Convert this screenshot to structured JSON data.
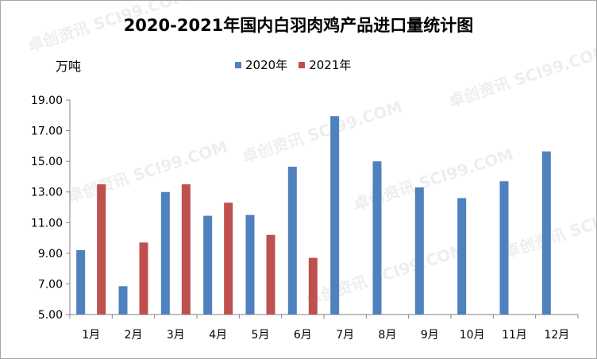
{
  "watermark": "卓创资讯 SCI99.COM",
  "chart_data": {
    "type": "bar",
    "title": "2020-2021年国内白羽肉鸡产品进口量统计图",
    "ylabel": "万吨",
    "xlabel": "",
    "categories": [
      "1月",
      "2月",
      "3月",
      "4月",
      "5月",
      "6月",
      "7月",
      "8月",
      "9月",
      "10月",
      "11月",
      "12月"
    ],
    "ylim": [
      5.0,
      19.0
    ],
    "yticks": [
      "19.00",
      "17.00",
      "15.00",
      "13.00",
      "11.00",
      "9.00",
      "7.00",
      "5.00"
    ],
    "legend_position": "top",
    "grid": false,
    "series": [
      {
        "name": "2020年",
        "color": "#4f81bd",
        "values": [
          9.2,
          6.85,
          13.0,
          11.45,
          11.5,
          14.65,
          17.95,
          15.0,
          13.3,
          12.6,
          13.7,
          15.65
        ]
      },
      {
        "name": "2021年",
        "color": "#c0504d",
        "values": [
          13.5,
          9.7,
          13.5,
          12.3,
          10.2,
          8.7,
          null,
          null,
          null,
          null,
          null,
          null
        ]
      }
    ]
  }
}
